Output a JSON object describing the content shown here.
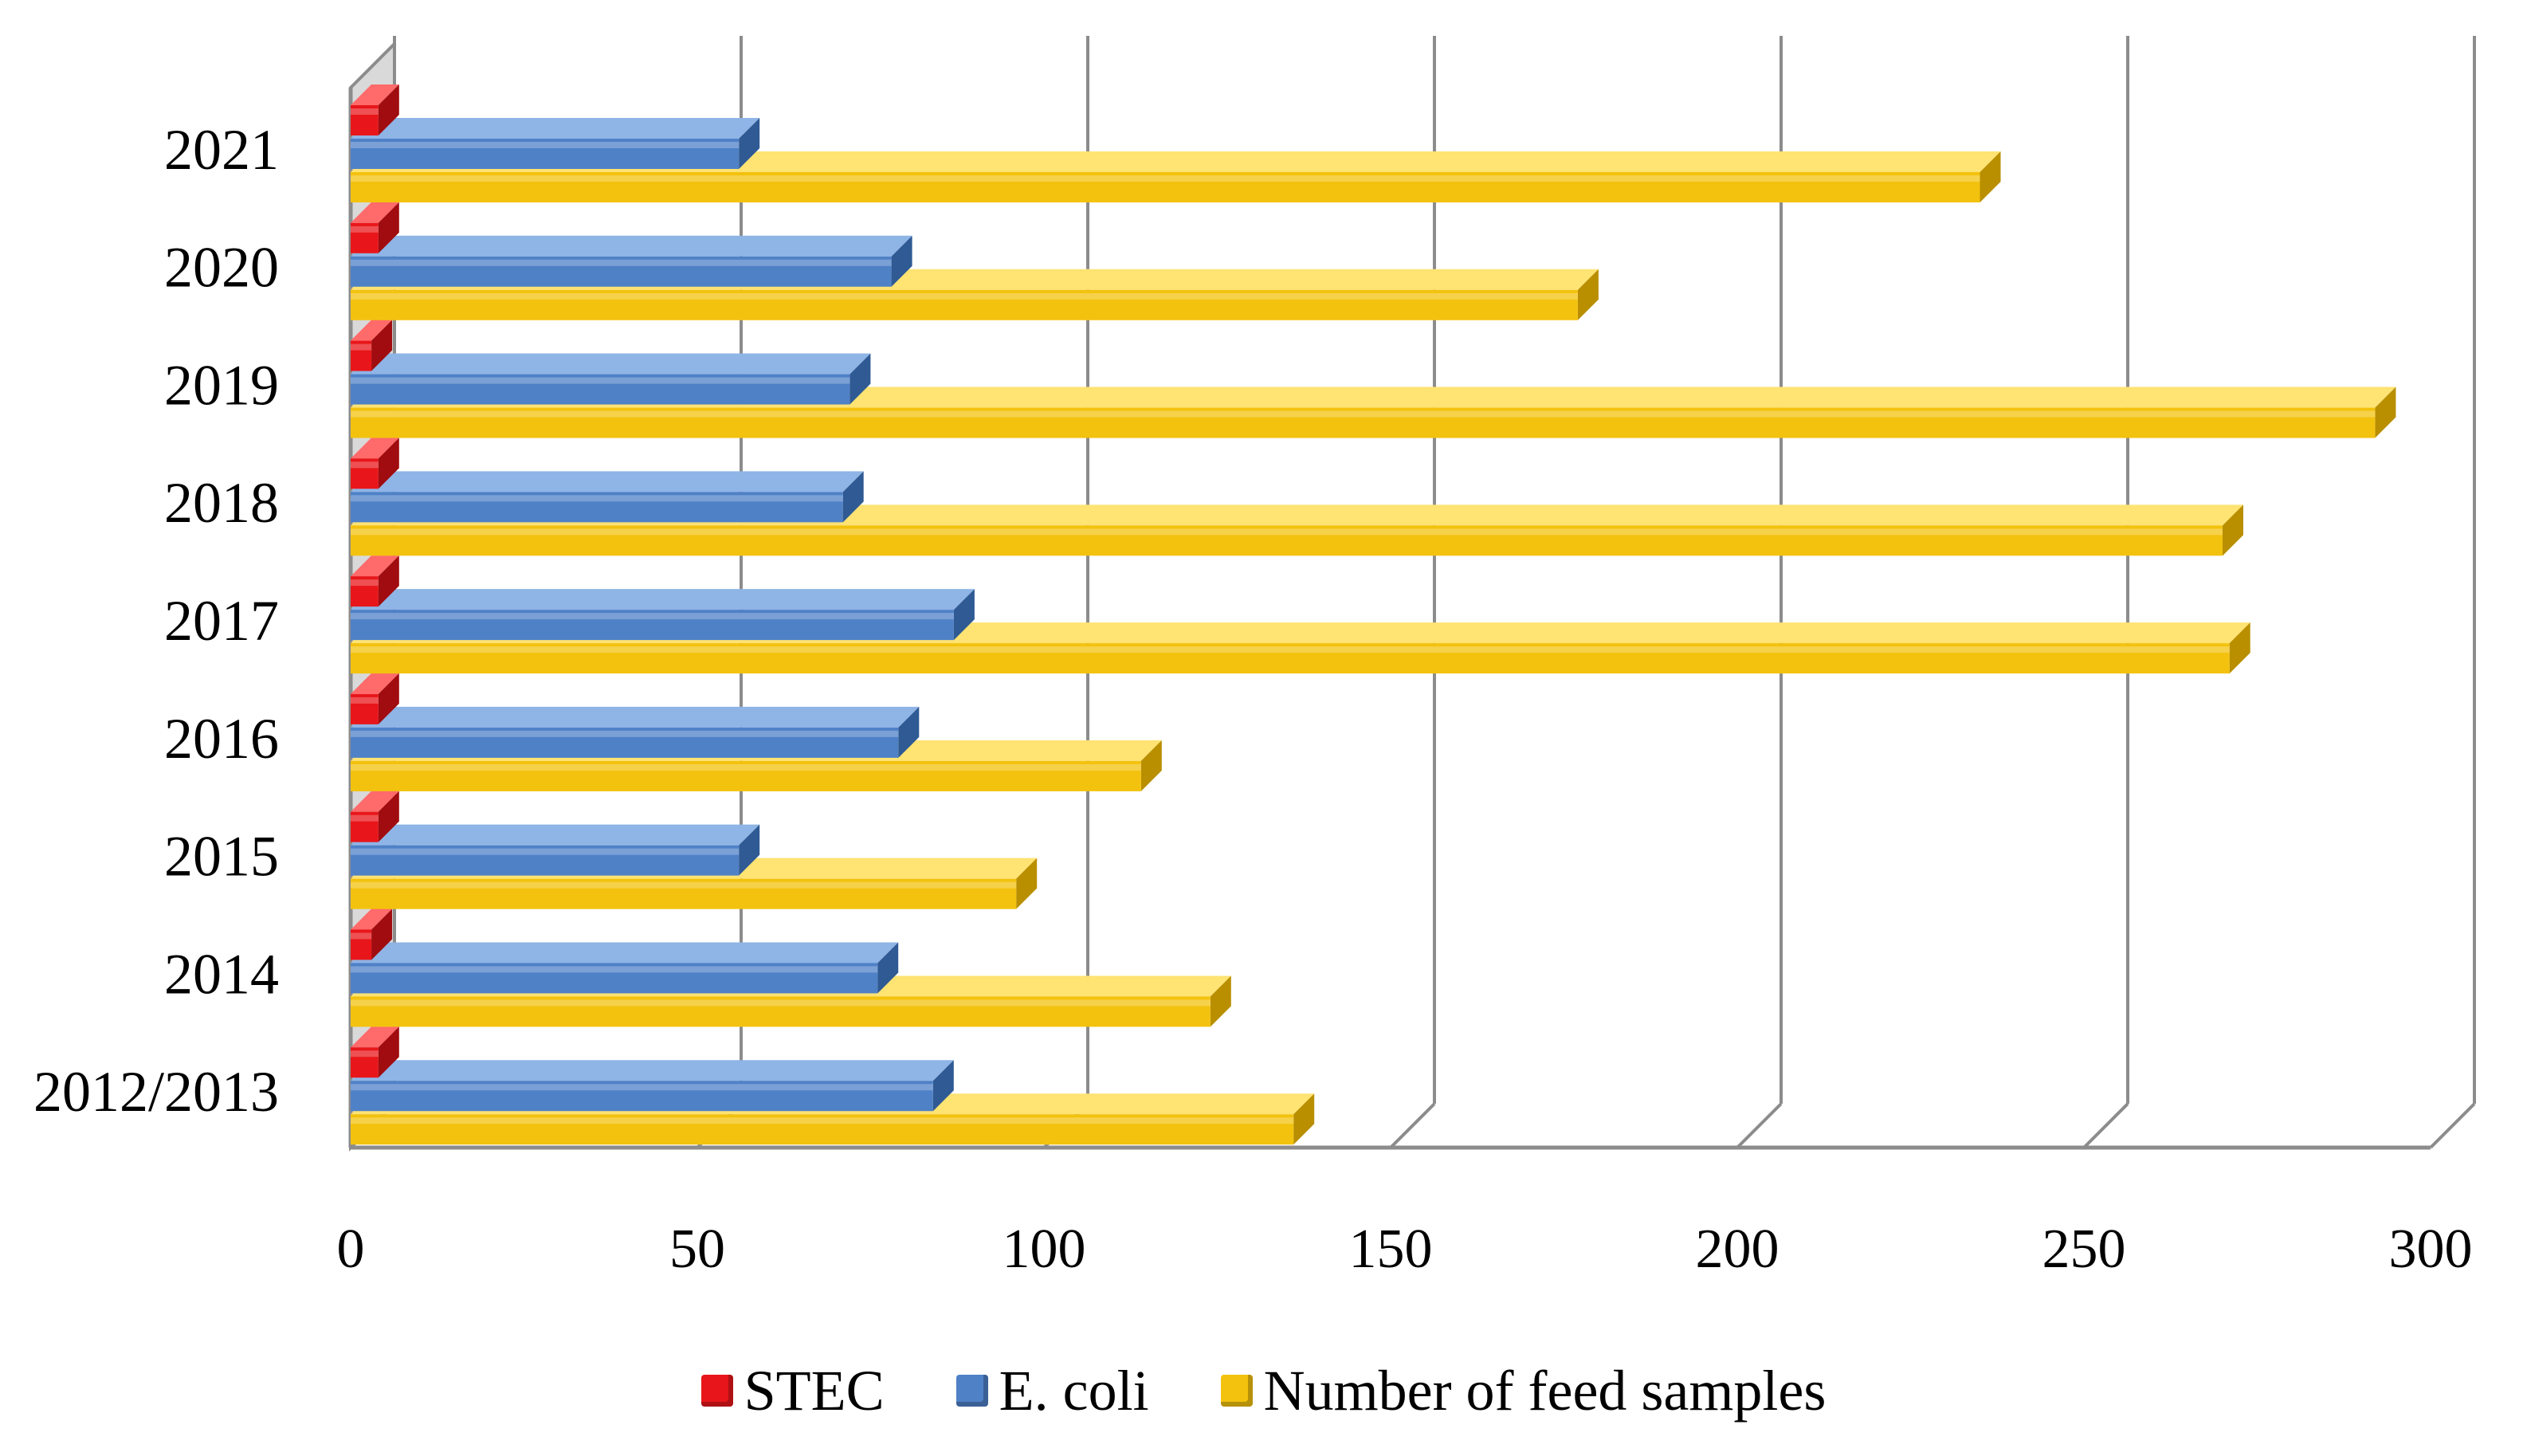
{
  "chart_data": {
    "type": "bar",
    "orientation": "horizontal",
    "style": "3d",
    "title": "",
    "xlabel": "",
    "ylabel": "",
    "xlim": [
      0,
      300
    ],
    "x_ticks": [
      "0",
      "50",
      "100",
      "150",
      "200",
      "250",
      "300"
    ],
    "categories": [
      "2012/2013",
      "2014",
      "2015",
      "2016",
      "2017",
      "2018",
      "2019",
      "2020",
      "2021"
    ],
    "series": [
      {
        "name": "STEC",
        "values": [
          4,
          3,
          4,
          4,
          4,
          4,
          3,
          4,
          4
        ]
      },
      {
        "name": "E. coli",
        "values": [
          84,
          76,
          56,
          79,
          87,
          71,
          72,
          78,
          56
        ]
      },
      {
        "name": "Number of feed samples",
        "values": [
          136,
          124,
          96,
          114,
          271,
          270,
          292,
          177,
          235
        ]
      }
    ],
    "legend_position": "bottom",
    "grid": true
  },
  "colors": {
    "STEC": {
      "face": "#e8161a",
      "top": "#ff6a6a",
      "side": "#a00c0f"
    },
    "E. coli": {
      "face": "#4f81c7",
      "top": "#8fb4e6",
      "side": "#2f5a94"
    },
    "Number of feed samples": {
      "face": "#f3c20e",
      "top": "#ffe373",
      "side": "#b98f00"
    },
    "axis": "#8c8c8c",
    "floor": "#d9d9d9"
  }
}
